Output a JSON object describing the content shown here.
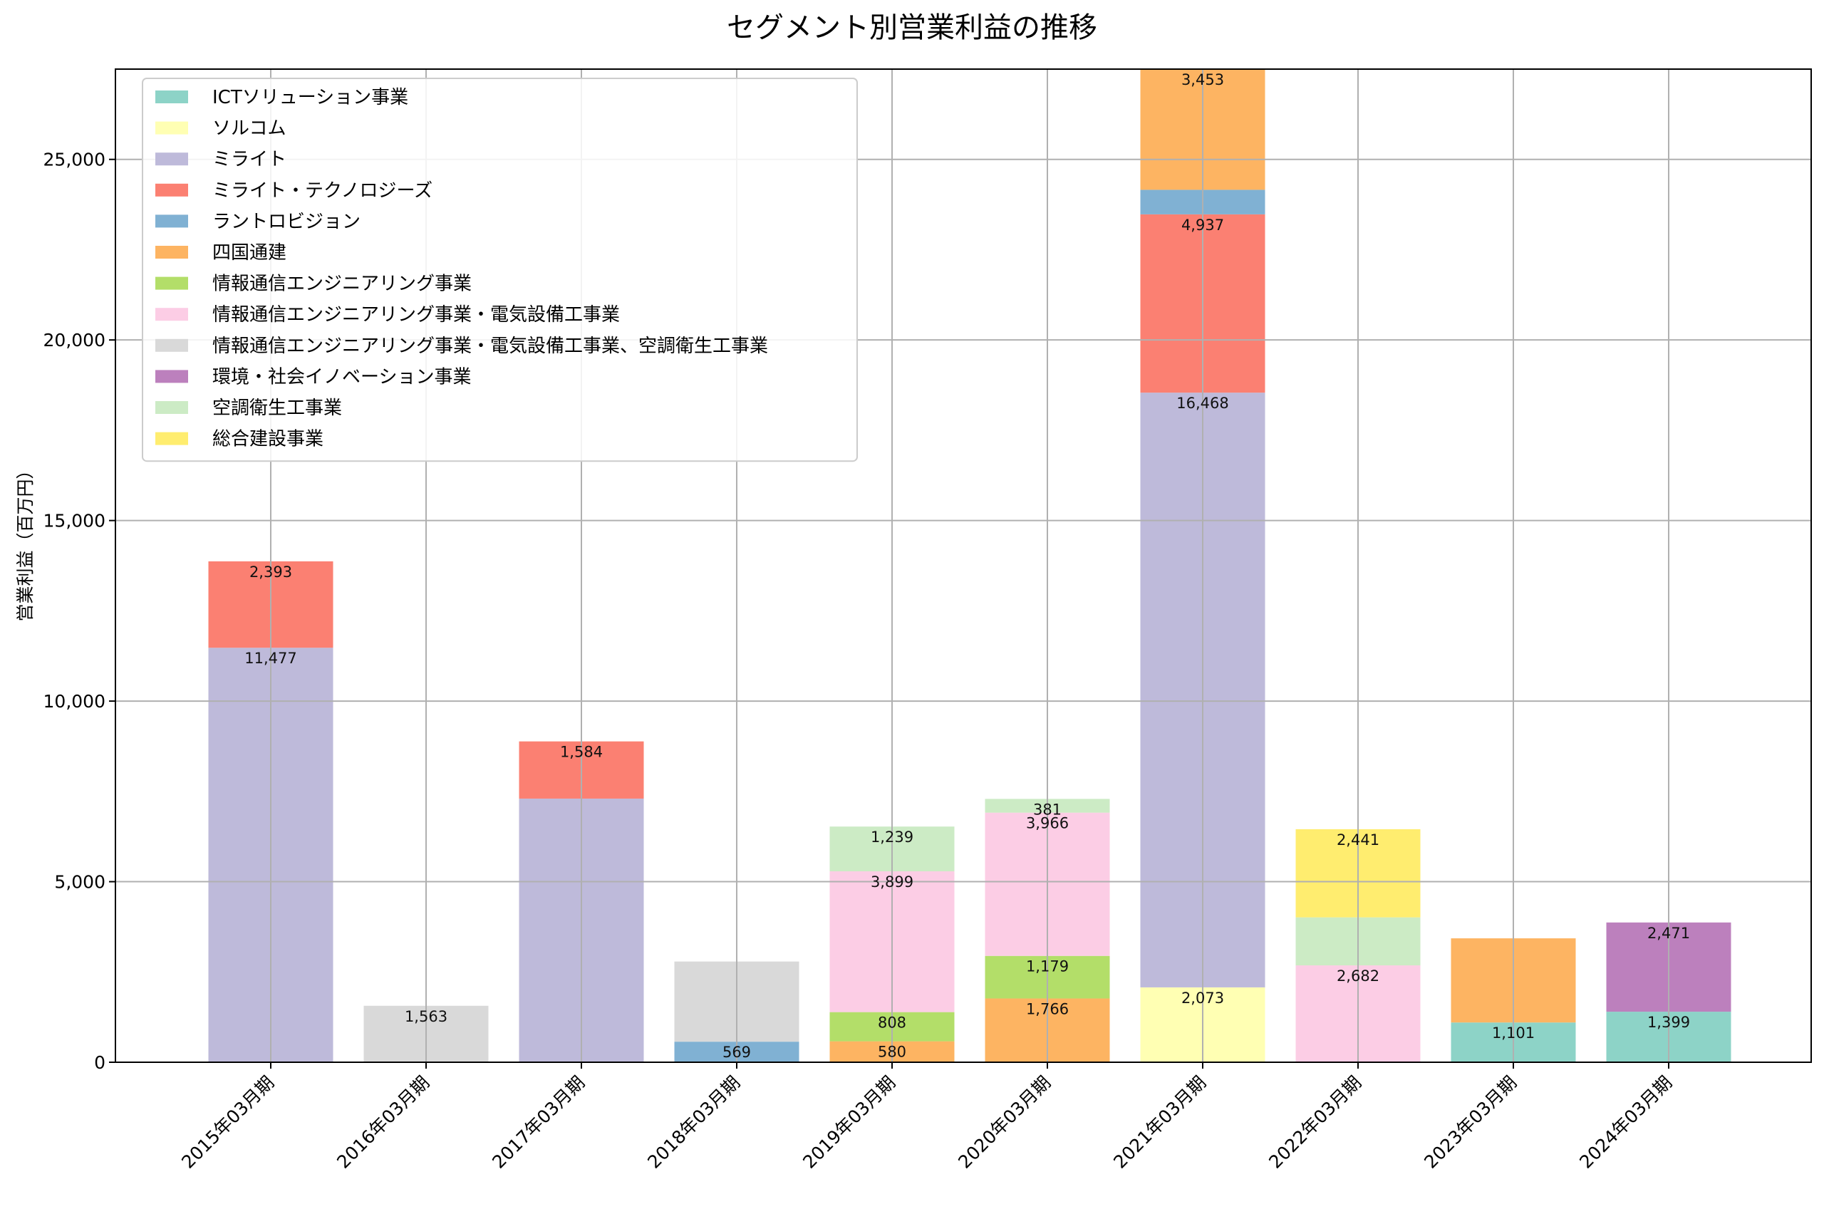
{
  "chart_data": {
    "type": "bar",
    "stacked": true,
    "title": "セグメント別営業利益の推移",
    "xlabel": "",
    "ylabel": "営業利益（百万円）",
    "ylim": [
      0,
      27500
    ],
    "yticks": [
      0,
      5000,
      10000,
      15000,
      20000,
      25000
    ],
    "ytick_labels": [
      "0",
      "5,000",
      "10,000",
      "15,000",
      "20,000",
      "25,000"
    ],
    "grid": true,
    "legend_position": "upper-left",
    "categories": [
      "2015年03月期",
      "2016年03月期",
      "2017年03月期",
      "2018年03月期",
      "2019年03月期",
      "2020年03月期",
      "2021年03月期",
      "2022年03月期",
      "2023年03月期",
      "2024年03月期"
    ],
    "series": [
      {
        "name": "ICTソリューション事業",
        "color": "#8dd3c7",
        "values": [
          0,
          0,
          0,
          0,
          0,
          0,
          0,
          0,
          1101,
          1399
        ]
      },
      {
        "name": "ソルコム",
        "color": "#ffffb3",
        "values": [
          0,
          0,
          0,
          0,
          0,
          0,
          2073,
          0,
          0,
          0
        ]
      },
      {
        "name": "ミライト",
        "color": "#bebada",
        "values": [
          11477,
          0,
          7300,
          0,
          0,
          0,
          16468,
          0,
          0,
          0
        ]
      },
      {
        "name": "ミライト・テクノロジーズ",
        "color": "#fb8072",
        "values": [
          2393,
          0,
          1584,
          0,
          0,
          0,
          4937,
          0,
          0,
          0
        ]
      },
      {
        "name": "ラントロビジョン",
        "color": "#80b1d3",
        "values": [
          0,
          0,
          0,
          569,
          0,
          0,
          680,
          0,
          0,
          0
        ]
      },
      {
        "name": "四国通建",
        "color": "#fdb462",
        "values": [
          0,
          0,
          0,
          0,
          580,
          1766,
          3453,
          0,
          2330,
          0
        ]
      },
      {
        "name": "情報通信エンジニアリング事業",
        "color": "#b3de69",
        "values": [
          0,
          0,
          0,
          0,
          808,
          1179,
          0,
          0,
          0,
          0
        ]
      },
      {
        "name": "情報通信エンジニアリング事業・電気設備工事業",
        "color": "#fccde5",
        "values": [
          0,
          0,
          0,
          0,
          3899,
          3966,
          0,
          2682,
          0,
          0
        ]
      },
      {
        "name": "情報通信エンジニアリング事業・電気設備工事業、空調衛生工事業",
        "color": "#d9d9d9",
        "values": [
          0,
          1563,
          0,
          2220,
          0,
          0,
          0,
          0,
          0,
          0
        ]
      },
      {
        "name": "環境・社会イノベーション事業",
        "color": "#bc80bd",
        "values": [
          0,
          0,
          0,
          0,
          0,
          0,
          0,
          0,
          0,
          2471
        ]
      },
      {
        "name": "空調衛生工事業",
        "color": "#ccebc5",
        "values": [
          0,
          0,
          0,
          0,
          1239,
          381,
          0,
          1330,
          0,
          0
        ]
      },
      {
        "name": "総合建設事業",
        "color": "#ffed6f",
        "values": [
          0,
          0,
          0,
          0,
          0,
          0,
          0,
          2441,
          0,
          0
        ]
      }
    ],
    "data_labels": [
      {
        "category": 0,
        "series": 2,
        "text": "11,477"
      },
      {
        "category": 0,
        "series": 3,
        "text": "2,393"
      },
      {
        "category": 1,
        "series": 8,
        "text": "1,563"
      },
      {
        "category": 2,
        "series": 3,
        "text": "1,584"
      },
      {
        "category": 3,
        "series": 4,
        "text": "569"
      },
      {
        "category": 4,
        "series": 5,
        "text": "580"
      },
      {
        "category": 4,
        "series": 6,
        "text": "808"
      },
      {
        "category": 4,
        "series": 7,
        "text": "3,899"
      },
      {
        "category": 4,
        "series": 10,
        "text": "1,239"
      },
      {
        "category": 5,
        "series": 5,
        "text": "1,766"
      },
      {
        "category": 5,
        "series": 6,
        "text": "1,179"
      },
      {
        "category": 5,
        "series": 7,
        "text": "3,966"
      },
      {
        "category": 5,
        "series": 10,
        "text": "381"
      },
      {
        "category": 6,
        "series": 1,
        "text": "2,073"
      },
      {
        "category": 6,
        "series": 2,
        "text": "16,468"
      },
      {
        "category": 6,
        "series": 3,
        "text": "4,937"
      },
      {
        "category": 6,
        "series": 5,
        "text": "3,453"
      },
      {
        "category": 7,
        "series": 7,
        "text": "2,682"
      },
      {
        "category": 7,
        "series": 11,
        "text": "2,441"
      },
      {
        "category": 8,
        "series": 0,
        "text": "1,101"
      },
      {
        "category": 9,
        "series": 0,
        "text": "1,399"
      },
      {
        "category": 9,
        "series": 9,
        "text": "2,471"
      }
    ]
  }
}
